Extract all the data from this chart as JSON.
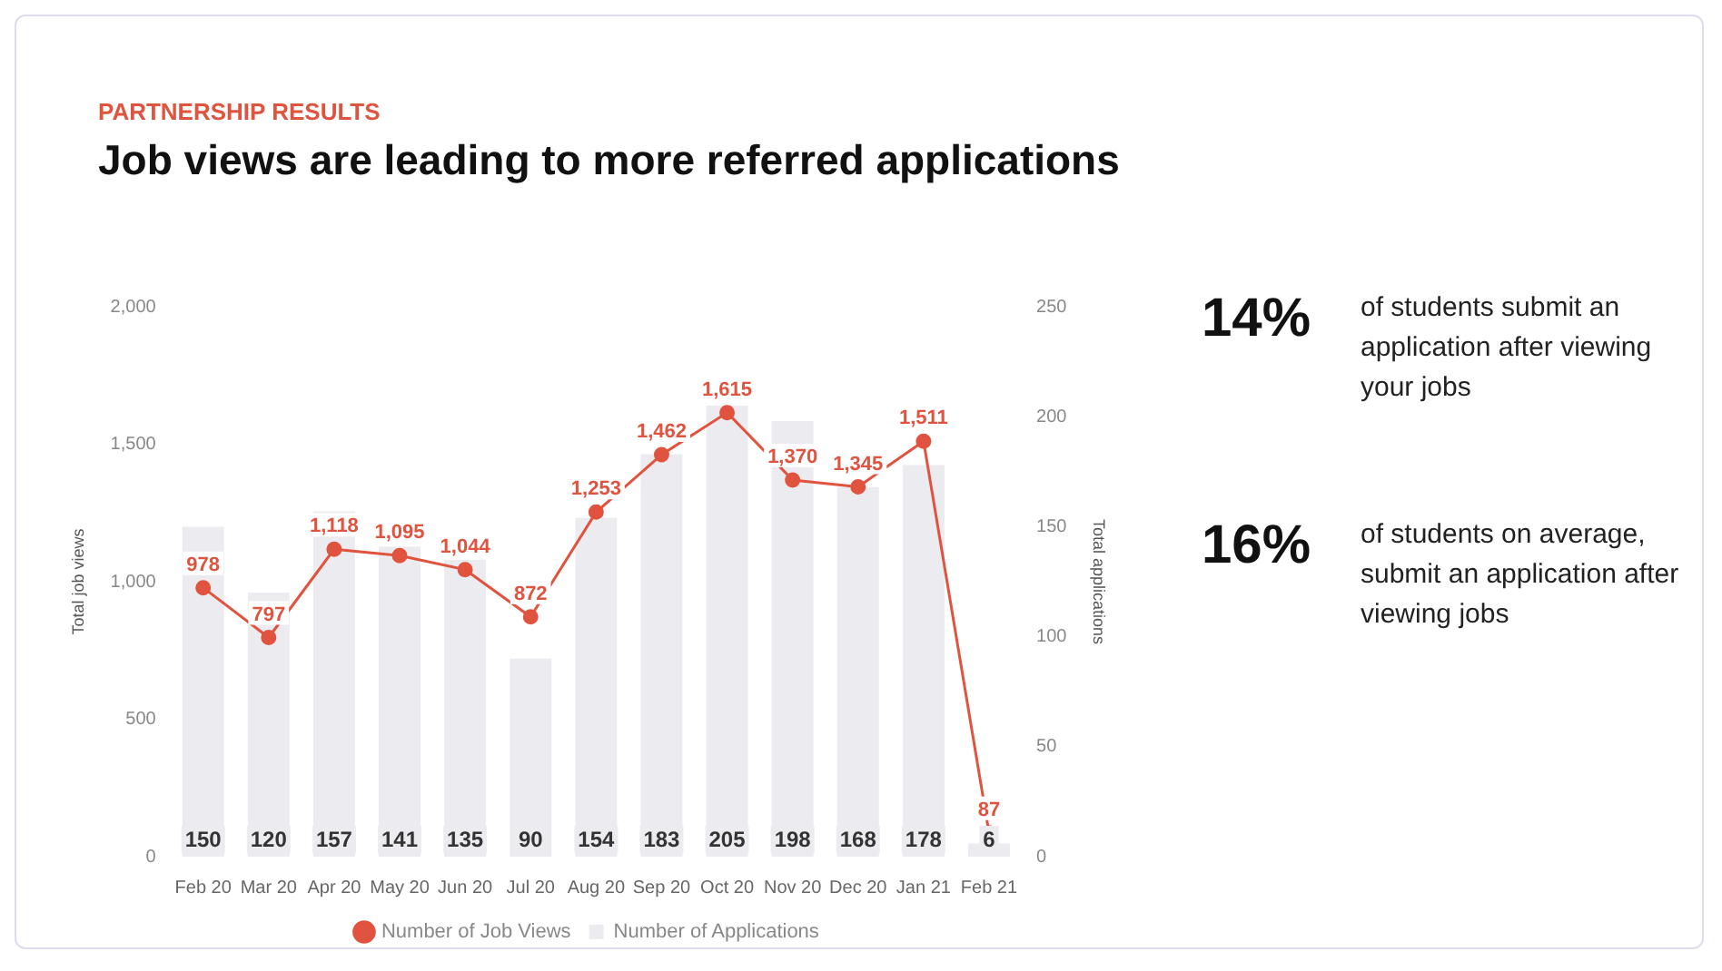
{
  "chart_data": {
    "type": "bar",
    "subtitle": "PARTNERSHIP RESULTS",
    "title": "Job views are leading to more referred applications",
    "categories": [
      "Feb 20",
      "Mar 20",
      "Apr 20",
      "May 20",
      "Jun 20",
      "Jul 20",
      "Aug 20",
      "Sep 20",
      "Oct 20",
      "Nov 20",
      "Dec 20",
      "Jan 21",
      "Feb 21"
    ],
    "series": [
      {
        "name": "Number of Applications",
        "axis": "y2",
        "color": "#ececf0",
        "values": [
          150,
          120,
          157,
          141,
          135,
          90,
          154,
          183,
          205,
          198,
          168,
          178,
          6
        ],
        "value_labels": [
          "150",
          "120",
          "157",
          "141",
          "135",
          "90",
          "154",
          "183",
          "205",
          "198",
          "168",
          "178",
          "6"
        ]
      },
      {
        "name": "Number of Job Views",
        "type": "line",
        "color": "#e0533f",
        "values": [
          978,
          797,
          1118,
          1095,
          1044,
          872,
          1253,
          1462,
          1615,
          1370,
          1345,
          1511,
          87
        ],
        "value_labels": [
          "978",
          "797",
          "1,118",
          "1,095",
          "1,044",
          "872",
          "1,253",
          "1,462",
          "1,615",
          "1,370",
          "1,345",
          "1,511",
          "87"
        ]
      }
    ],
    "ylabel": "Total job views",
    "y2label": "Total applications",
    "ylim": [
      0,
      2000
    ],
    "yticks": [
      0,
      {
        "value": 500,
        "label": "500"
      },
      {
        "value": 1000,
        "label": "1,000"
      },
      {
        "value": 1500,
        "label": "1,500"
      },
      {
        "value": 2000,
        "label": "2,000"
      }
    ],
    "y2lim": [
      0,
      250
    ],
    "y2ticks": [
      0,
      50,
      100,
      150,
      200,
      250
    ],
    "grid": false,
    "legend": "bottom",
    "marker": "circle",
    "line_style": "solid",
    "annotations": [
      "14%",
      "of students submit an application after viewing your jobs",
      "16%",
      "of students on average, submit an application after viewing jobs"
    ]
  }
}
